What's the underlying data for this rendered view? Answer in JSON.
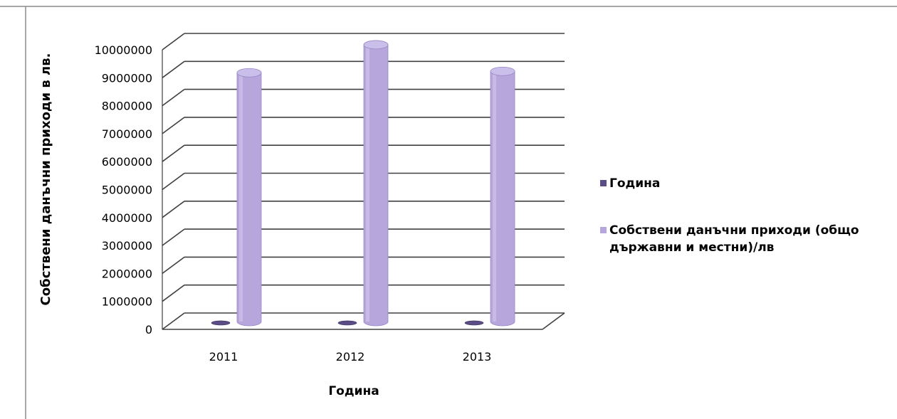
{
  "colors": {
    "series1": "#5b4c86",
    "series2": "#b7a6dc",
    "grid": "#404040"
  },
  "chart_data": {
    "type": "bar",
    "style": "3d-cylinder",
    "title": "",
    "xlabel": "Година",
    "ylabel": "Собствени  данъчни приходи в лв.",
    "categories": [
      "2011",
      "2012",
      "2013"
    ],
    "ylim": [
      0,
      10000000
    ],
    "yticks": [
      "0",
      "1000000",
      "2000000",
      "3000000",
      "4000000",
      "5000000",
      "6000000",
      "7000000",
      "8000000",
      "9000000",
      "10000000"
    ],
    "grid": true,
    "legend_position": "right",
    "series": [
      {
        "name": "Година",
        "values": [
          2011,
          2012,
          2013
        ]
      },
      {
        "name": "Собствени данъчни приходи (общо държавни и местни)/лв",
        "values": [
          8900000,
          9900000,
          8950000
        ]
      }
    ]
  },
  "legend": {
    "items": [
      {
        "label": "Година"
      },
      {
        "label": "Собствени данъчни приходи (общо държавни и местни)/лв"
      }
    ]
  }
}
